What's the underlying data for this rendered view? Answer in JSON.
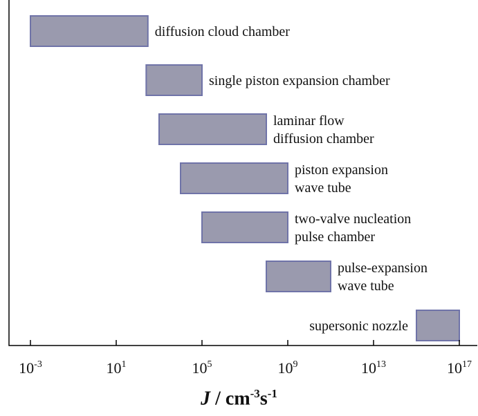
{
  "chart_data": {
    "type": "bar",
    "orientation": "horizontal-range",
    "x_scale": "log",
    "xlim": [
      0.001,
      1e+17
    ],
    "categories": [
      "diffusion cloud chamber",
      "single piston expansion chamber",
      "laminar flow diffusion chamber",
      "piston expansion wave tube",
      "two-valve nucleation pulse chamber",
      "pulse-expansion wave tube",
      "supersonic nozzle"
    ],
    "bars": [
      {
        "label_lines": [
          "diffusion cloud chamber"
        ],
        "label_side": "right",
        "start": 0.001,
        "end": 300.0
      },
      {
        "label_lines": [
          "single piston expansion chamber"
        ],
        "label_side": "right",
        "start": 250.0,
        "end": 100000.0
      },
      {
        "label_lines": [
          "laminar flow",
          "diffusion chamber"
        ],
        "label_side": "right",
        "start": 1000.0,
        "end": 100000000.0
      },
      {
        "label_lines": [
          "piston expansion",
          "wave tube"
        ],
        "label_side": "right",
        "start": 10000.0,
        "end": 1000000000.0
      },
      {
        "label_lines": [
          "two-valve nucleation",
          "pulse chamber"
        ],
        "label_side": "right",
        "start": 100000.0,
        "end": 1000000000.0
      },
      {
        "label_lines": [
          "pulse-expansion",
          "wave tube"
        ],
        "label_side": "right",
        "start": 100000000.0,
        "end": 100000000000.0
      },
      {
        "label_lines": [
          "supersonic nozzle"
        ],
        "label_side": "left",
        "start": 1000000000000000.0,
        "end": 1e+17
      }
    ],
    "ticks": [
      {
        "base": "10",
        "exp": "-3",
        "value": 0.001
      },
      {
        "base": "10",
        "exp": "1",
        "value": 10.0
      },
      {
        "base": "10",
        "exp": "5",
        "value": 100000.0
      },
      {
        "base": "10",
        "exp": "9",
        "value": 1000000000.0
      },
      {
        "base": "10",
        "exp": "13",
        "value": 10000000000000.0
      },
      {
        "base": "10",
        "exp": "17",
        "value": 1e+17
      }
    ],
    "xlabel": {
      "var": "J",
      "sep": " / cm",
      "exp1": "-3",
      "mid": "s",
      "exp2": "-1"
    },
    "grid": false,
    "colors": {
      "bar_fill": "#9a9aae",
      "bar_edge": "#6f73a8"
    }
  }
}
